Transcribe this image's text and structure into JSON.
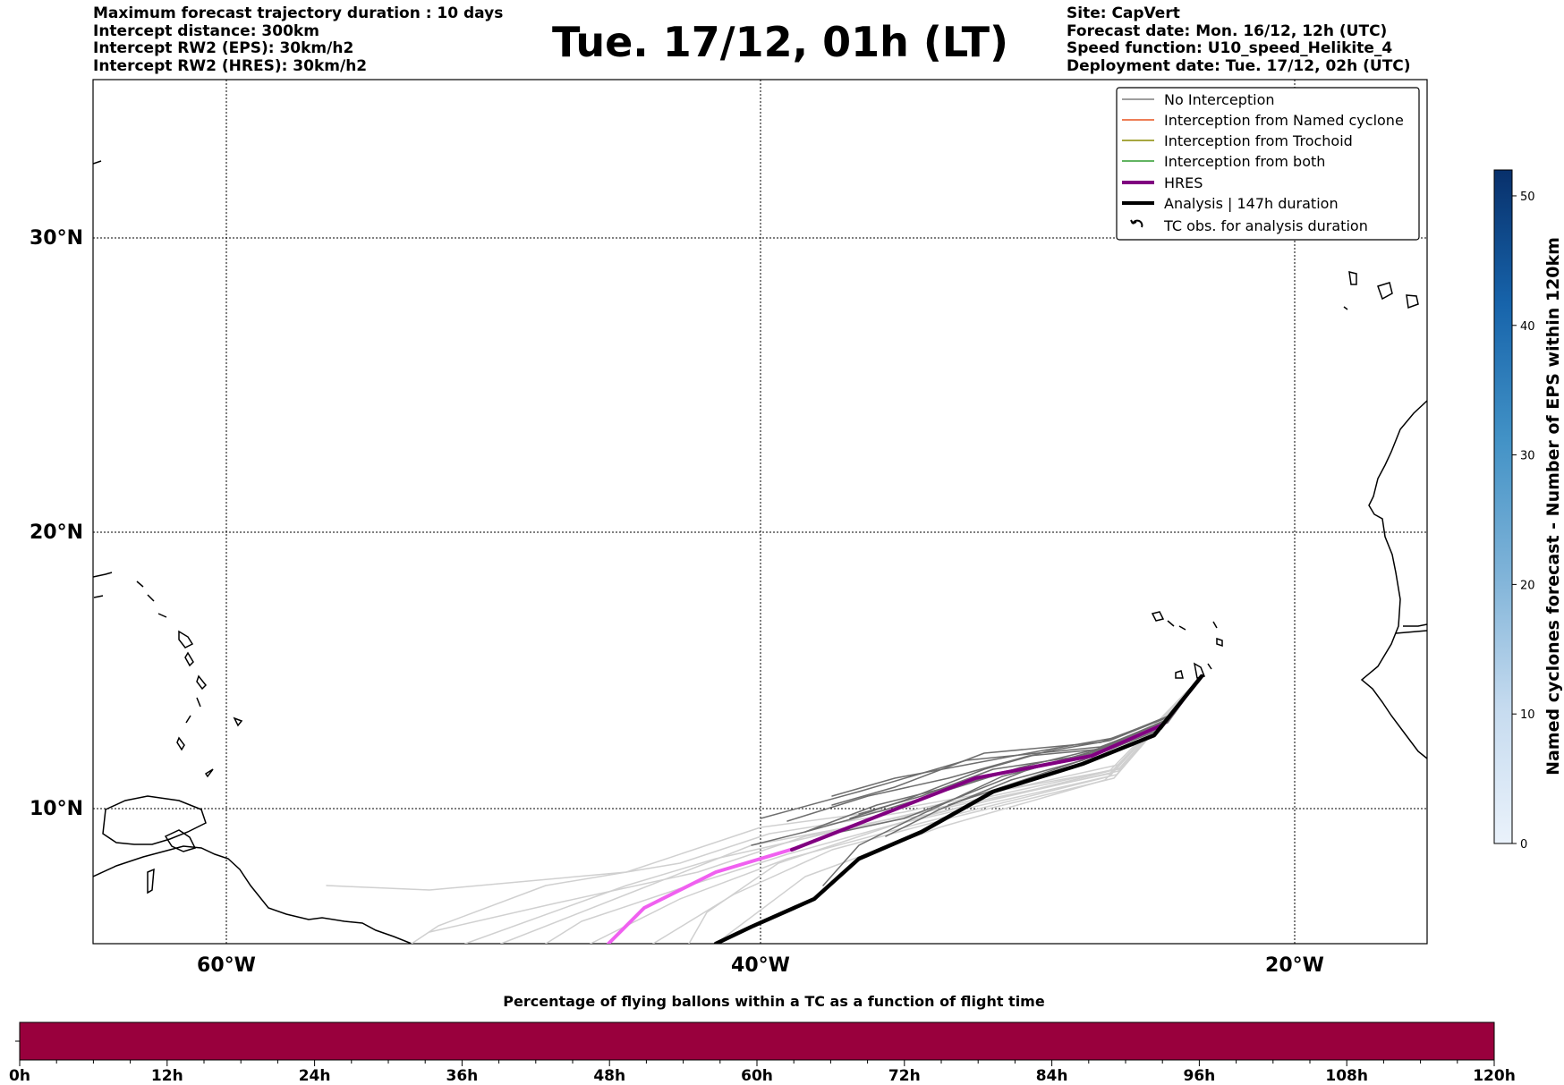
{
  "header": {
    "left_lines": [
      "Maximum forecast trajectory duration : 10 days",
      "Intercept distance: 300km",
      "Intercept RW2 (EPS):  30km/h2",
      "Intercept RW2 (HRES): 30km/h2"
    ],
    "title": "Tue. 17/12, 01h (LT)",
    "right_lines": [
      "Site: CapVert",
      "Forecast date: Mon. 16/12, 12h (UTC)",
      "Speed function: U10_speed_Helikite_4",
      "Deployment date: Tue. 17/12, 02h (UTC)"
    ]
  },
  "map": {
    "lat_labels": [
      "30°N",
      "20°N",
      "10°N"
    ],
    "lon_labels": [
      "60°W",
      "40°W",
      "20°W"
    ],
    "legend": [
      {
        "label": "No Interception",
        "color": "#7f7f7f",
        "style": "thin"
      },
      {
        "label": "Interception from Named cyclone",
        "color": "#e8541e",
        "style": "thin"
      },
      {
        "label": "Interception from Trochoid",
        "color": "#8a8a00",
        "style": "thin"
      },
      {
        "label": "Interception from both",
        "color": "#2e9b2e",
        "style": "thin"
      },
      {
        "label": "HRES",
        "color": "#800080",
        "style": "thick"
      },
      {
        "label": "Analysis | 147h duration",
        "color": "#000000",
        "style": "thick"
      },
      {
        "label": "TC obs. for analysis duration",
        "color": "#000000",
        "style": "marker"
      }
    ]
  },
  "colorbar": {
    "label": "Named cyclones forecast - Number of EPS within 120km",
    "ticks": [
      "0",
      "10",
      "20",
      "30",
      "40",
      "50"
    ],
    "min": 0,
    "max": 52,
    "colors": [
      "#e6eff9",
      "#08306b"
    ]
  },
  "timeline": {
    "title": "Percentage of flying ballons within a TC as a function of flight time",
    "ticks": [
      "0h",
      "12h",
      "24h",
      "36h",
      "48h",
      "60h",
      "72h",
      "84h",
      "96h",
      "108h",
      "120h"
    ],
    "bar_color": "#99003d"
  }
}
